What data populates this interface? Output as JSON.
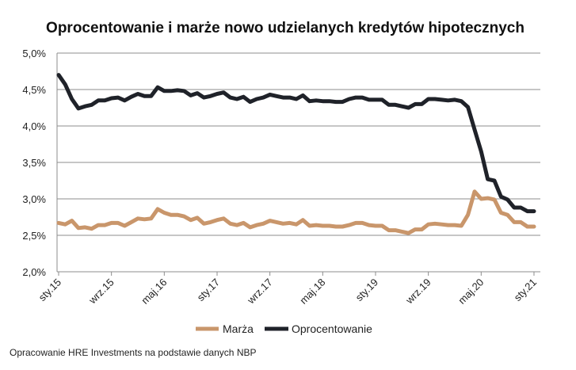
{
  "chart_data": {
    "type": "line",
    "title": "Oprocentowanie i marże nowo udzielanych kredytów hipotecznych",
    "xlabel": "",
    "ylabel": "",
    "ylim": [
      2.0,
      5.0
    ],
    "y_ticks": [
      "2,0%",
      "2,5%",
      "3,0%",
      "3,5%",
      "4,0%",
      "4,5%",
      "5,0%"
    ],
    "y_tick_values": [
      2.0,
      2.5,
      3.0,
      3.5,
      4.0,
      4.5,
      5.0
    ],
    "x_range": [
      "2015-01",
      "2021-01"
    ],
    "x_ticks": [
      {
        "label": "sty.15",
        "month": "2015-01"
      },
      {
        "label": "wrz.15",
        "month": "2015-09"
      },
      {
        "label": "maj.16",
        "month": "2016-05"
      },
      {
        "label": "sty.17",
        "month": "2017-01"
      },
      {
        "label": "wrz.17",
        "month": "2017-09"
      },
      {
        "label": "maj.18",
        "month": "2018-05"
      },
      {
        "label": "sty.19",
        "month": "2019-01"
      },
      {
        "label": "wrz.19",
        "month": "2019-09"
      },
      {
        "label": "maj.20",
        "month": "2020-05"
      },
      {
        "label": "sty.21",
        "month": "2021-01"
      }
    ],
    "grid": true,
    "legend_position": "bottom",
    "series": [
      {
        "name": "Marża",
        "color": "#C9966B",
        "values": [
          2.67,
          2.65,
          2.7,
          2.6,
          2.61,
          2.59,
          2.64,
          2.64,
          2.67,
          2.67,
          2.63,
          2.68,
          2.73,
          2.72,
          2.73,
          2.86,
          2.81,
          2.78,
          2.78,
          2.76,
          2.71,
          2.74,
          2.66,
          2.68,
          2.71,
          2.73,
          2.66,
          2.64,
          2.67,
          2.61,
          2.64,
          2.66,
          2.7,
          2.68,
          2.66,
          2.67,
          2.65,
          2.71,
          2.63,
          2.64,
          2.63,
          2.63,
          2.62,
          2.62,
          2.64,
          2.67,
          2.67,
          2.64,
          2.63,
          2.63,
          2.57,
          2.57,
          2.55,
          2.53,
          2.58,
          2.58,
          2.65,
          2.66,
          2.65,
          2.64,
          2.64,
          2.63,
          2.78,
          3.1,
          3.0,
          3.01,
          2.99,
          2.81,
          2.78,
          2.68,
          2.68,
          2.62,
          2.62
        ]
      },
      {
        "name": "Oprocentowanie",
        "color": "#1F2229",
        "values": [
          4.7,
          4.57,
          4.37,
          4.24,
          4.27,
          4.29,
          4.35,
          4.35,
          4.38,
          4.39,
          4.35,
          4.4,
          4.44,
          4.41,
          4.41,
          4.53,
          4.48,
          4.48,
          4.49,
          4.48,
          4.42,
          4.45,
          4.39,
          4.41,
          4.44,
          4.46,
          4.39,
          4.37,
          4.4,
          4.33,
          4.37,
          4.39,
          4.43,
          4.41,
          4.39,
          4.39,
          4.37,
          4.42,
          4.34,
          4.35,
          4.34,
          4.34,
          4.33,
          4.33,
          4.37,
          4.39,
          4.39,
          4.36,
          4.36,
          4.36,
          4.29,
          4.29,
          4.27,
          4.25,
          4.3,
          4.3,
          4.37,
          4.37,
          4.36,
          4.35,
          4.36,
          4.34,
          4.26,
          3.95,
          3.65,
          3.27,
          3.25,
          3.03,
          2.99,
          2.88,
          2.88,
          2.83,
          2.83
        ]
      }
    ]
  },
  "source_note": "Opracowanie HRE Investments na podstawie danych NBP"
}
